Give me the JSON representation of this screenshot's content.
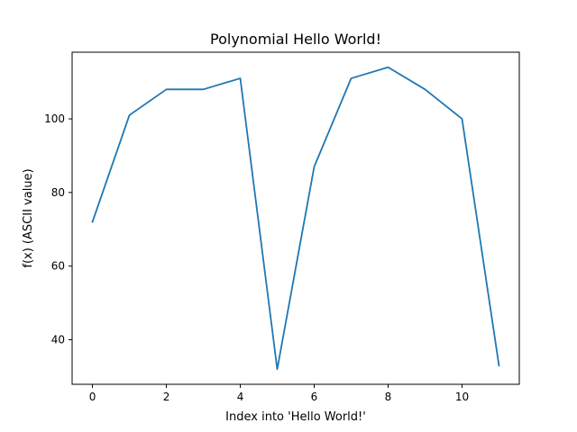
{
  "chart_data": {
    "type": "line",
    "title": "Polynomial Hello World!",
    "xlabel": "Index into 'Hello World!'",
    "ylabel": "f(x) (ASCII value)",
    "x": [
      0,
      1,
      2,
      3,
      4,
      5,
      6,
      7,
      8,
      9,
      10,
      11
    ],
    "series": [
      {
        "values": [
          72,
          101,
          108,
          108,
          111,
          32,
          87,
          111,
          114,
          108,
          100,
          33
        ],
        "color": "#1f77b4"
      }
    ],
    "xlim": [
      -0.55,
      11.55
    ],
    "ylim": [
      27.9,
      118.1
    ],
    "xticks": [
      0,
      2,
      4,
      6,
      8,
      10
    ],
    "yticks": [
      40,
      60,
      80,
      100
    ],
    "grid": false,
    "legend": "none"
  }
}
